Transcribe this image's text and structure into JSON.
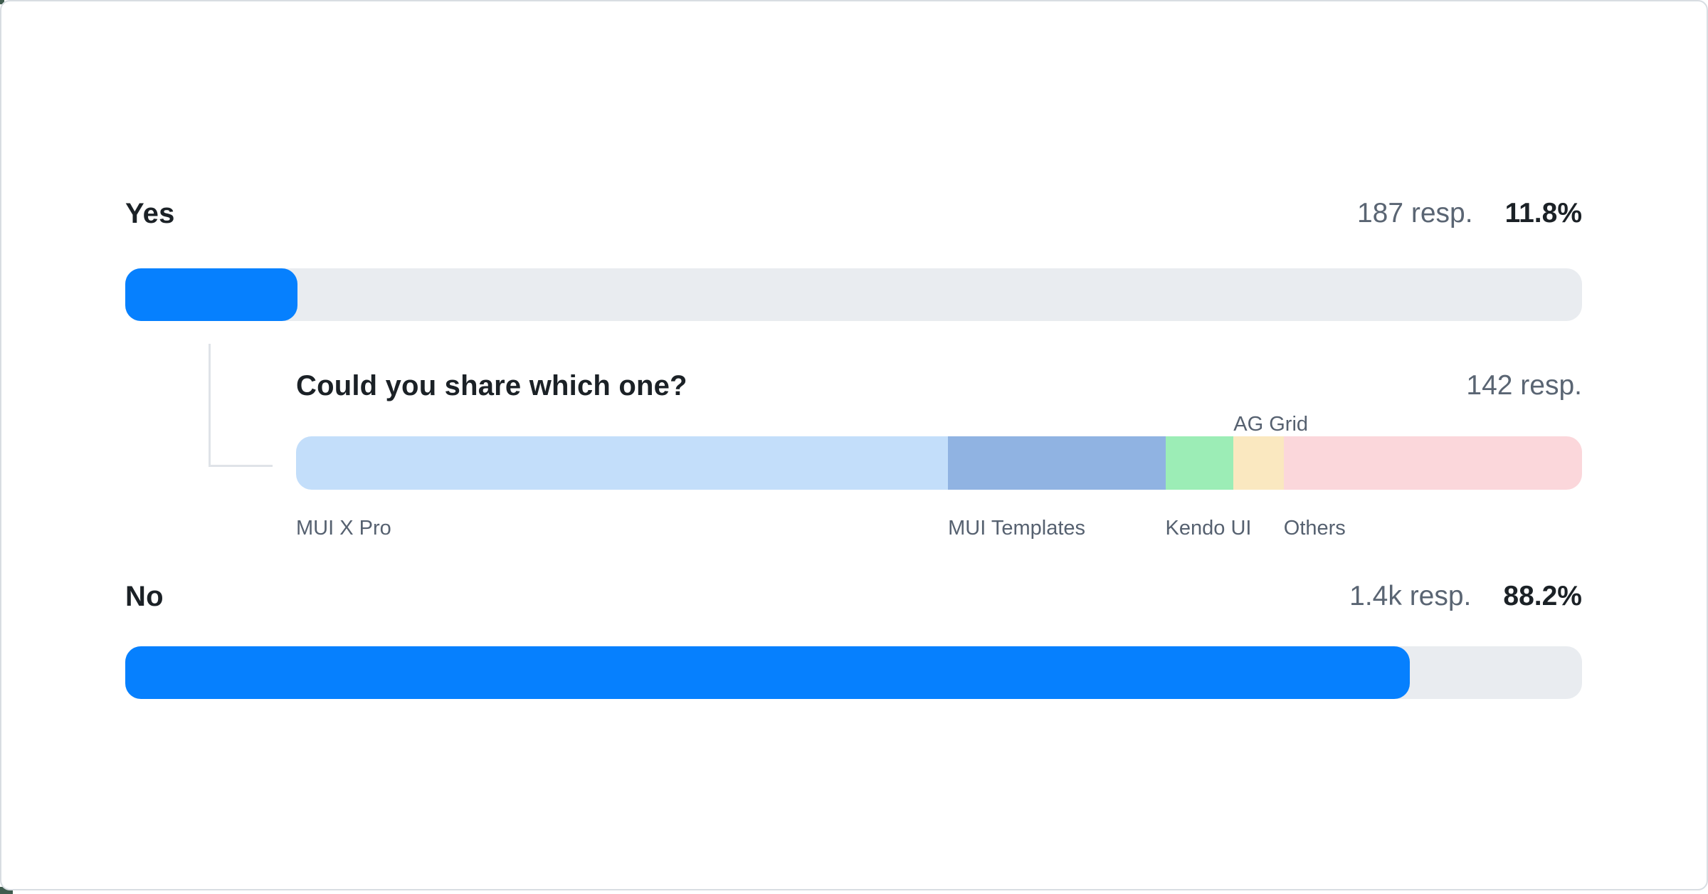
{
  "survey": {
    "options": [
      {
        "label": "Yes",
        "responses": "187 resp.",
        "percent": "11.8%",
        "fill_percent": 11.8
      },
      {
        "label": "No",
        "responses": "1.4k resp.",
        "percent": "88.2%",
        "fill_percent": 88.2
      }
    ],
    "followup": {
      "title": "Could you share which one?",
      "responses": "142 resp.",
      "segments": [
        {
          "label": "MUI X Pro",
          "width_percent": 50.7,
          "color": "#c3defa",
          "label_placement": "below"
        },
        {
          "label": "MUI Templates",
          "width_percent": 16.9,
          "color": "#90b3e2",
          "label_placement": "below"
        },
        {
          "label": "Kendo UI",
          "width_percent": 5.3,
          "color": "#9cedb6",
          "label_placement": "below"
        },
        {
          "label": "AG Grid",
          "width_percent": 3.9,
          "color": "#fae8c0",
          "label_placement": "above"
        },
        {
          "label": "Others",
          "width_percent": 23.2,
          "color": "#fbd7db",
          "label_placement": "below"
        }
      ]
    }
  },
  "colors": {
    "accent_blue": "#0680fe",
    "bar_track": "#e9ecf0",
    "text_dark": "#1b2126",
    "text_muted": "#5a6573",
    "segment_label": "#566170",
    "connector": "#dfe3e8",
    "card_border": "#d8dde2",
    "background_peek": "#3f5c4e"
  },
  "chart_data": [
    {
      "type": "bar",
      "orientation": "horizontal",
      "title": "Yes/No survey responses",
      "categories": [
        "Yes",
        "No"
      ],
      "values": [
        11.8,
        88.2
      ],
      "value_unit": "percent",
      "response_counts": [
        "187 resp.",
        "1.4k resp."
      ],
      "xlim": [
        0,
        100
      ],
      "grid": false,
      "legend": false
    },
    {
      "type": "bar",
      "subtype": "stacked-horizontal",
      "title": "Could you share which one?",
      "total_responses": "142 resp.",
      "categories": [
        "MUI X Pro",
        "MUI Templates",
        "Kendo UI",
        "AG Grid",
        "Others"
      ],
      "values": [
        50.7,
        16.9,
        5.3,
        3.9,
        23.2
      ],
      "value_unit": "percent of bar width (estimated from segment widths)",
      "colors": [
        "#c3defa",
        "#90b3e2",
        "#9cedb6",
        "#fae8c0",
        "#fbd7db"
      ],
      "label_positions": {
        "above": [
          "AG Grid"
        ],
        "below": [
          "MUI X Pro",
          "MUI Templates",
          "Kendo UI",
          "Others"
        ]
      }
    }
  ]
}
